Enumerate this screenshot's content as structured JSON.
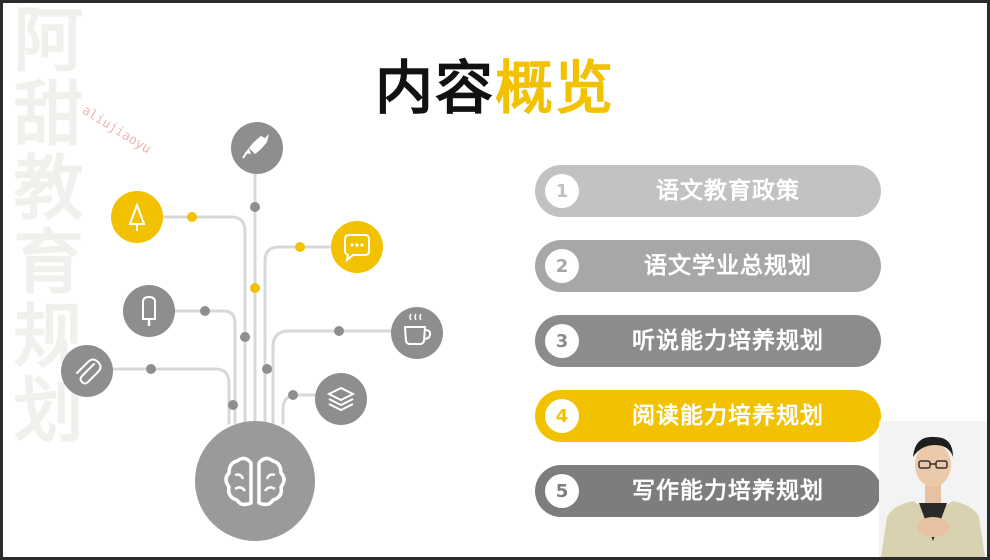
{
  "watermark": {
    "side_text": "阿甜教育规划",
    "text": "aliujiaoyu"
  },
  "title": {
    "part1": "内容",
    "part2": "概览",
    "color_dark": "#111111",
    "color_accent": "#f2c200"
  },
  "menu": [
    {
      "number": "1",
      "label": "语文教育政策",
      "color": "#c2c2c2",
      "num_color": "#c2c2c2"
    },
    {
      "number": "2",
      "label": "语文学业总规划",
      "color": "#a7a7a7",
      "num_color": "#a7a7a7"
    },
    {
      "number": "3",
      "label": "听说能力培养规划",
      "color": "#8c8c8c",
      "num_color": "#8c8c8c"
    },
    {
      "number": "4",
      "label": "阅读能力培养规划",
      "color": "#f2c200",
      "num_color": "#f2c200"
    },
    {
      "number": "5",
      "label": "写作能力培养规划",
      "color": "#7d7d7d",
      "num_color": "#7d7d7d"
    }
  ],
  "diagram_icons": {
    "center": "brain-icon",
    "nodes": [
      "rocket-icon",
      "tree-icon",
      "chat-icon",
      "popsicle-icon",
      "coffee-icon",
      "paperclip-icon",
      "layers-icon"
    ],
    "yellow": "#f2c200",
    "gray": "#8e8e8e"
  }
}
